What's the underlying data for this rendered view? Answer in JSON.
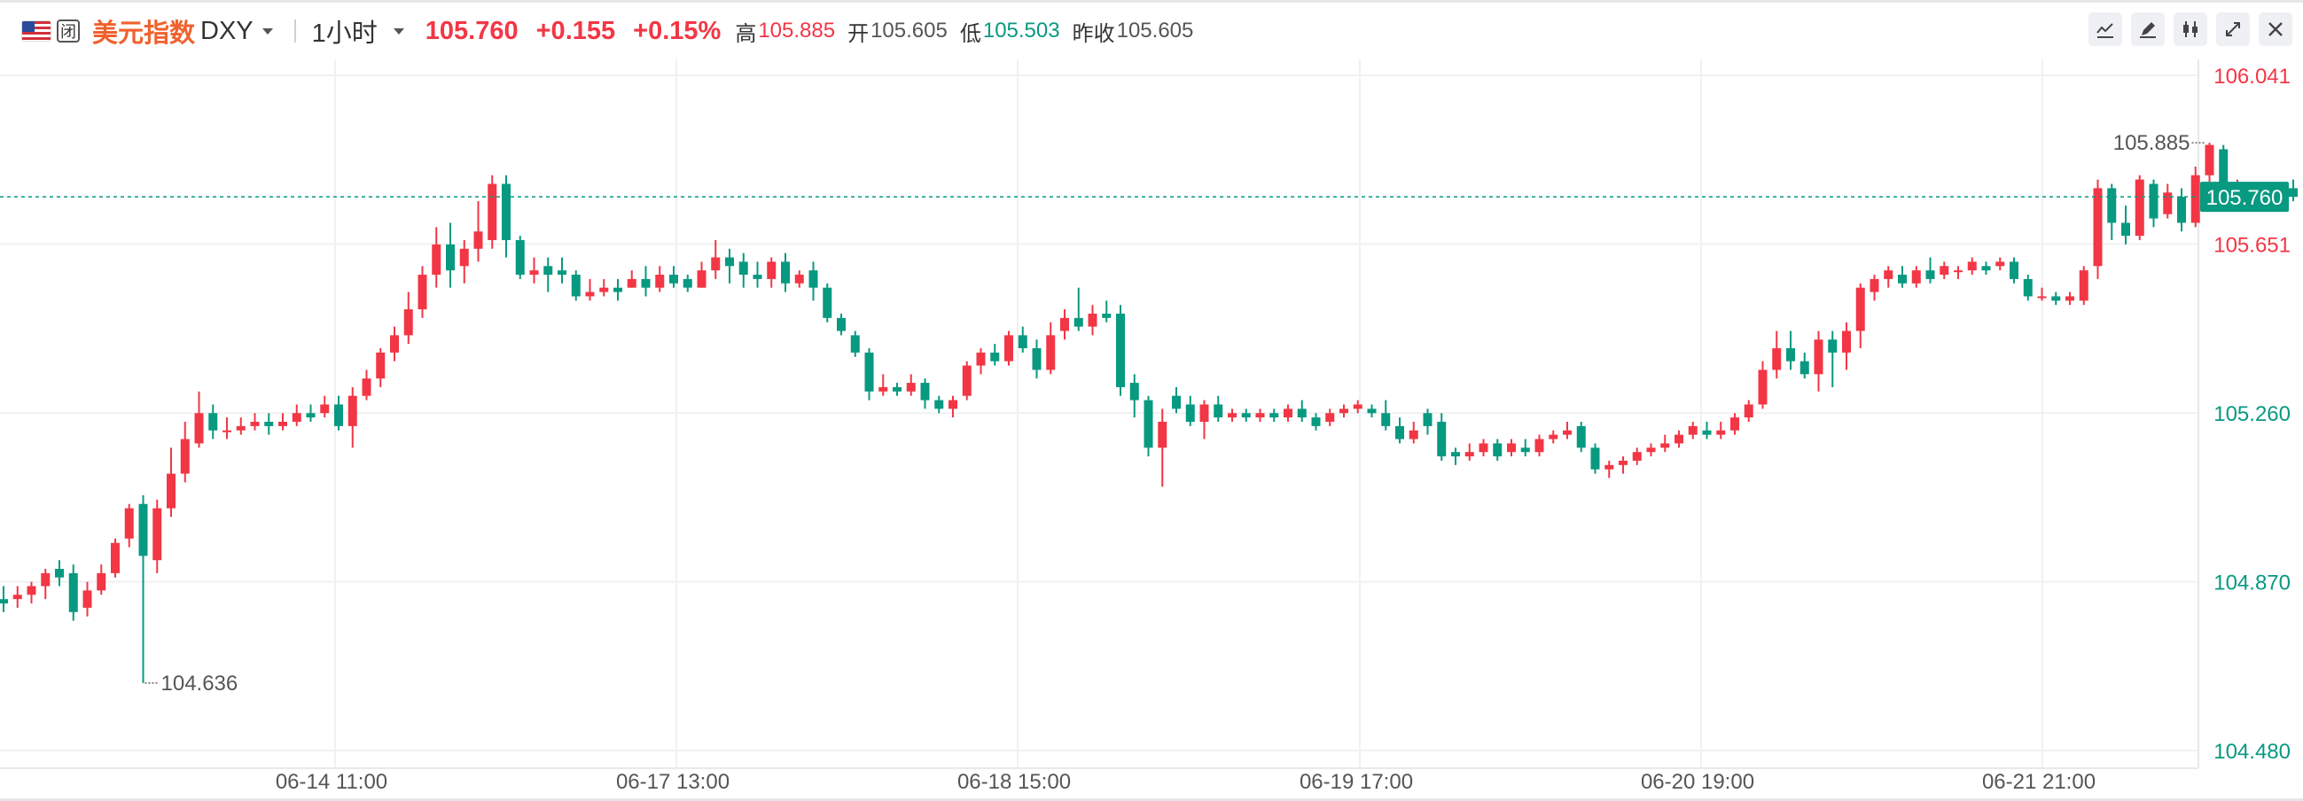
{
  "header": {
    "flag_icon": "us-flag-icon",
    "market_closed_badge": "闭",
    "symbol_name": "美元指数",
    "symbol_code": "DXY",
    "interval": "1小时",
    "last_price": "105.760",
    "change": "+0.155",
    "change_pct": "+0.15%",
    "high_label": "高",
    "high_value": "105.885",
    "open_label": "开",
    "open_value": "105.605",
    "low_label": "低",
    "low_value": "105.503",
    "prev_close_label": "昨收",
    "prev_close_value": "105.605"
  },
  "toolbar": {
    "icons": [
      "line-chart-icon",
      "draw-pen-icon",
      "candlestick-icon",
      "fullscreen-icon",
      "close-icon"
    ]
  },
  "colors": {
    "up": "#f23645",
    "down": "#089981",
    "grid": "#f0f1f3",
    "last_price_line": "#089981"
  },
  "chart_data": {
    "type": "candlestick",
    "ylim": [
      104.48,
      106.041
    ],
    "y_ticks": [
      "106.041",
      "105.651",
      "105.260",
      "104.870",
      "104.480"
    ],
    "x_tick_labels": [
      "06-14 11:00",
      "06-17 13:00",
      "06-18 15:00",
      "06-19 17:00",
      "06-20 19:00",
      "06-21 21:00"
    ],
    "last_price_label": "105.760",
    "high_annotation": "105.885",
    "low_annotation": "104.636",
    "candles": [
      [
        104.83,
        104.82,
        104.86,
        104.8
      ],
      [
        104.83,
        104.84,
        104.86,
        104.81
      ],
      [
        104.84,
        104.86,
        104.87,
        104.82
      ],
      [
        104.86,
        104.89,
        104.9,
        104.83
      ],
      [
        104.9,
        104.88,
        104.92,
        104.86
      ],
      [
        104.89,
        104.8,
        104.91,
        104.78
      ],
      [
        104.81,
        104.85,
        104.87,
        104.79
      ],
      [
        104.85,
        104.89,
        104.91,
        104.84
      ],
      [
        104.89,
        104.96,
        104.97,
        104.88
      ],
      [
        104.97,
        105.04,
        105.05,
        104.95
      ],
      [
        105.05,
        104.93,
        105.07,
        104.636
      ],
      [
        104.92,
        105.04,
        105.06,
        104.89
      ],
      [
        105.04,
        105.12,
        105.18,
        105.02
      ],
      [
        105.12,
        105.2,
        105.24,
        105.1
      ],
      [
        105.19,
        105.26,
        105.31,
        105.18
      ],
      [
        105.26,
        105.22,
        105.28,
        105.2
      ],
      [
        105.22,
        105.22,
        105.25,
        105.2
      ],
      [
        105.22,
        105.23,
        105.25,
        105.21
      ],
      [
        105.23,
        105.24,
        105.26,
        105.22
      ],
      [
        105.24,
        105.23,
        105.26,
        105.21
      ],
      [
        105.23,
        105.24,
        105.26,
        105.22
      ],
      [
        105.24,
        105.26,
        105.28,
        105.23
      ],
      [
        105.26,
        105.25,
        105.28,
        105.24
      ],
      [
        105.26,
        105.28,
        105.3,
        105.25
      ],
      [
        105.28,
        105.23,
        105.3,
        105.22
      ],
      [
        105.23,
        105.3,
        105.32,
        105.18
      ],
      [
        105.3,
        105.34,
        105.36,
        105.29
      ],
      [
        105.34,
        105.4,
        105.41,
        105.32
      ],
      [
        105.4,
        105.44,
        105.46,
        105.38
      ],
      [
        105.44,
        105.5,
        105.54,
        105.42
      ],
      [
        105.5,
        105.58,
        105.6,
        105.48
      ],
      [
        105.58,
        105.65,
        105.69,
        105.55
      ],
      [
        105.65,
        105.59,
        105.7,
        105.55
      ],
      [
        105.6,
        105.64,
        105.66,
        105.56
      ],
      [
        105.64,
        105.68,
        105.75,
        105.61
      ],
      [
        105.66,
        105.79,
        105.81,
        105.64
      ],
      [
        105.79,
        105.66,
        105.81,
        105.62
      ],
      [
        105.66,
        105.58,
        105.67,
        105.57
      ],
      [
        105.58,
        105.59,
        105.62,
        105.56
      ],
      [
        105.6,
        105.58,
        105.62,
        105.54
      ],
      [
        105.59,
        105.58,
        105.62,
        105.56
      ],
      [
        105.58,
        105.53,
        105.59,
        105.52
      ],
      [
        105.53,
        105.54,
        105.57,
        105.52
      ],
      [
        105.54,
        105.55,
        105.57,
        105.53
      ],
      [
        105.55,
        105.54,
        105.57,
        105.52
      ],
      [
        105.55,
        105.57,
        105.59,
        105.55
      ],
      [
        105.57,
        105.55,
        105.6,
        105.53
      ],
      [
        105.55,
        105.58,
        105.6,
        105.54
      ],
      [
        105.58,
        105.56,
        105.6,
        105.55
      ],
      [
        105.57,
        105.55,
        105.58,
        105.54
      ],
      [
        105.55,
        105.59,
        105.61,
        105.55
      ],
      [
        105.59,
        105.62,
        105.66,
        105.57
      ],
      [
        105.62,
        105.6,
        105.64,
        105.56
      ],
      [
        105.61,
        105.58,
        105.63,
        105.55
      ],
      [
        105.58,
        105.57,
        105.61,
        105.55
      ],
      [
        105.57,
        105.61,
        105.62,
        105.55
      ],
      [
        105.61,
        105.56,
        105.63,
        105.54
      ],
      [
        105.56,
        105.58,
        105.59,
        105.55
      ],
      [
        105.59,
        105.55,
        105.61,
        105.52
      ],
      [
        105.55,
        105.48,
        105.56,
        105.47
      ],
      [
        105.48,
        105.45,
        105.49,
        105.44
      ],
      [
        105.44,
        105.4,
        105.45,
        105.39
      ],
      [
        105.4,
        105.31,
        105.41,
        105.29
      ],
      [
        105.31,
        105.32,
        105.35,
        105.3
      ],
      [
        105.32,
        105.31,
        105.33,
        105.3
      ],
      [
        105.31,
        105.33,
        105.35,
        105.3
      ],
      [
        105.33,
        105.29,
        105.34,
        105.27
      ],
      [
        105.29,
        105.27,
        105.3,
        105.26
      ],
      [
        105.27,
        105.29,
        105.3,
        105.25
      ],
      [
        105.3,
        105.37,
        105.38,
        105.29
      ],
      [
        105.37,
        105.4,
        105.41,
        105.35
      ],
      [
        105.4,
        105.38,
        105.42,
        105.37
      ],
      [
        105.38,
        105.44,
        105.45,
        105.37
      ],
      [
        105.44,
        105.41,
        105.46,
        105.4
      ],
      [
        105.41,
        105.36,
        105.43,
        105.34
      ],
      [
        105.36,
        105.44,
        105.47,
        105.35
      ],
      [
        105.45,
        105.48,
        105.5,
        105.43
      ],
      [
        105.48,
        105.46,
        105.55,
        105.45
      ],
      [
        105.46,
        105.49,
        105.51,
        105.44
      ],
      [
        105.49,
        105.48,
        105.52,
        105.47
      ],
      [
        105.49,
        105.32,
        105.51,
        105.3
      ],
      [
        105.33,
        105.29,
        105.35,
        105.25
      ],
      [
        105.29,
        105.18,
        105.3,
        105.16
      ],
      [
        105.18,
        105.24,
        105.27,
        105.09
      ],
      [
        105.3,
        105.27,
        105.32,
        105.26
      ],
      [
        105.28,
        105.24,
        105.3,
        105.23
      ],
      [
        105.24,
        105.28,
        105.29,
        105.2
      ],
      [
        105.28,
        105.25,
        105.3,
        105.24
      ],
      [
        105.25,
        105.26,
        105.27,
        105.24
      ],
      [
        105.26,
        105.25,
        105.27,
        105.24
      ],
      [
        105.25,
        105.26,
        105.27,
        105.24
      ],
      [
        105.26,
        105.25,
        105.27,
        105.24
      ],
      [
        105.25,
        105.27,
        105.28,
        105.24
      ],
      [
        105.27,
        105.25,
        105.29,
        105.24
      ],
      [
        105.25,
        105.23,
        105.26,
        105.22
      ],
      [
        105.24,
        105.26,
        105.27,
        105.23
      ],
      [
        105.26,
        105.27,
        105.28,
        105.25
      ],
      [
        105.27,
        105.28,
        105.29,
        105.26
      ],
      [
        105.27,
        105.26,
        105.28,
        105.25
      ],
      [
        105.26,
        105.23,
        105.29,
        105.22
      ],
      [
        105.23,
        105.2,
        105.25,
        105.19
      ],
      [
        105.2,
        105.22,
        105.24,
        105.19
      ],
      [
        105.26,
        105.23,
        105.27,
        105.21
      ],
      [
        105.24,
        105.16,
        105.26,
        105.15
      ],
      [
        105.17,
        105.16,
        105.18,
        105.14
      ],
      [
        105.16,
        105.17,
        105.19,
        105.15
      ],
      [
        105.17,
        105.19,
        105.2,
        105.16
      ],
      [
        105.19,
        105.16,
        105.2,
        105.15
      ],
      [
        105.17,
        105.19,
        105.2,
        105.16
      ],
      [
        105.18,
        105.17,
        105.2,
        105.16
      ],
      [
        105.17,
        105.2,
        105.21,
        105.16
      ],
      [
        105.2,
        105.21,
        105.22,
        105.19
      ],
      [
        105.21,
        105.22,
        105.24,
        105.2
      ],
      [
        105.23,
        105.18,
        105.24,
        105.17
      ],
      [
        105.18,
        105.13,
        105.19,
        105.12
      ],
      [
        105.13,
        105.14,
        105.15,
        105.11
      ],
      [
        105.14,
        105.15,
        105.16,
        105.12
      ],
      [
        105.15,
        105.17,
        105.18,
        105.14
      ],
      [
        105.17,
        105.18,
        105.19,
        105.16
      ],
      [
        105.18,
        105.19,
        105.21,
        105.17
      ],
      [
        105.19,
        105.21,
        105.22,
        105.18
      ],
      [
        105.21,
        105.23,
        105.24,
        105.2
      ],
      [
        105.22,
        105.21,
        105.24,
        105.2
      ],
      [
        105.21,
        105.22,
        105.24,
        105.2
      ],
      [
        105.22,
        105.25,
        105.26,
        105.21
      ],
      [
        105.25,
        105.28,
        105.29,
        105.24
      ],
      [
        105.28,
        105.36,
        105.38,
        105.27
      ],
      [
        105.36,
        105.41,
        105.45,
        105.34
      ],
      [
        105.41,
        105.38,
        105.45,
        105.36
      ],
      [
        105.38,
        105.35,
        105.4,
        105.34
      ],
      [
        105.35,
        105.43,
        105.45,
        105.31
      ],
      [
        105.43,
        105.4,
        105.45,
        105.32
      ],
      [
        105.4,
        105.45,
        105.47,
        105.36
      ],
      [
        105.45,
        105.55,
        105.56,
        105.41
      ],
      [
        105.54,
        105.57,
        105.58,
        105.52
      ],
      [
        105.57,
        105.59,
        105.6,
        105.55
      ],
      [
        105.58,
        105.56,
        105.6,
        105.55
      ],
      [
        105.56,
        105.59,
        105.6,
        105.55
      ],
      [
        105.59,
        105.57,
        105.62,
        105.56
      ],
      [
        105.58,
        105.6,
        105.61,
        105.57
      ],
      [
        105.59,
        105.59,
        105.6,
        105.57
      ],
      [
        105.59,
        105.61,
        105.62,
        105.58
      ],
      [
        105.6,
        105.59,
        105.61,
        105.58
      ],
      [
        105.6,
        105.61,
        105.62,
        105.59
      ],
      [
        105.61,
        105.57,
        105.62,
        105.56
      ],
      [
        105.57,
        105.53,
        105.58,
        105.52
      ],
      [
        105.53,
        105.53,
        105.55,
        105.52
      ],
      [
        105.53,
        105.52,
        105.54,
        105.51
      ],
      [
        105.52,
        105.53,
        105.54,
        105.51
      ],
      [
        105.52,
        105.59,
        105.6,
        105.51
      ],
      [
        105.6,
        105.78,
        105.8,
        105.57
      ],
      [
        105.78,
        105.7,
        105.79,
        105.66
      ],
      [
        105.7,
        105.67,
        105.74,
        105.65
      ],
      [
        105.67,
        105.8,
        105.81,
        105.66
      ],
      [
        105.79,
        105.71,
        105.8,
        105.69
      ],
      [
        105.72,
        105.77,
        105.79,
        105.71
      ],
      [
        105.76,
        105.7,
        105.78,
        105.68
      ],
      [
        105.7,
        105.81,
        105.83,
        105.69
      ],
      [
        105.81,
        105.88,
        105.885,
        105.79
      ],
      [
        105.87,
        105.77,
        105.88,
        105.75
      ],
      [
        105.76,
        105.79,
        105.8,
        105.75
      ],
      [
        105.78,
        105.78,
        105.79,
        105.76
      ],
      [
        105.77,
        105.77,
        105.79,
        105.75
      ],
      [
        105.76,
        105.78,
        105.79,
        105.74
      ],
      [
        105.78,
        105.76,
        105.8,
        105.75
      ]
    ]
  }
}
